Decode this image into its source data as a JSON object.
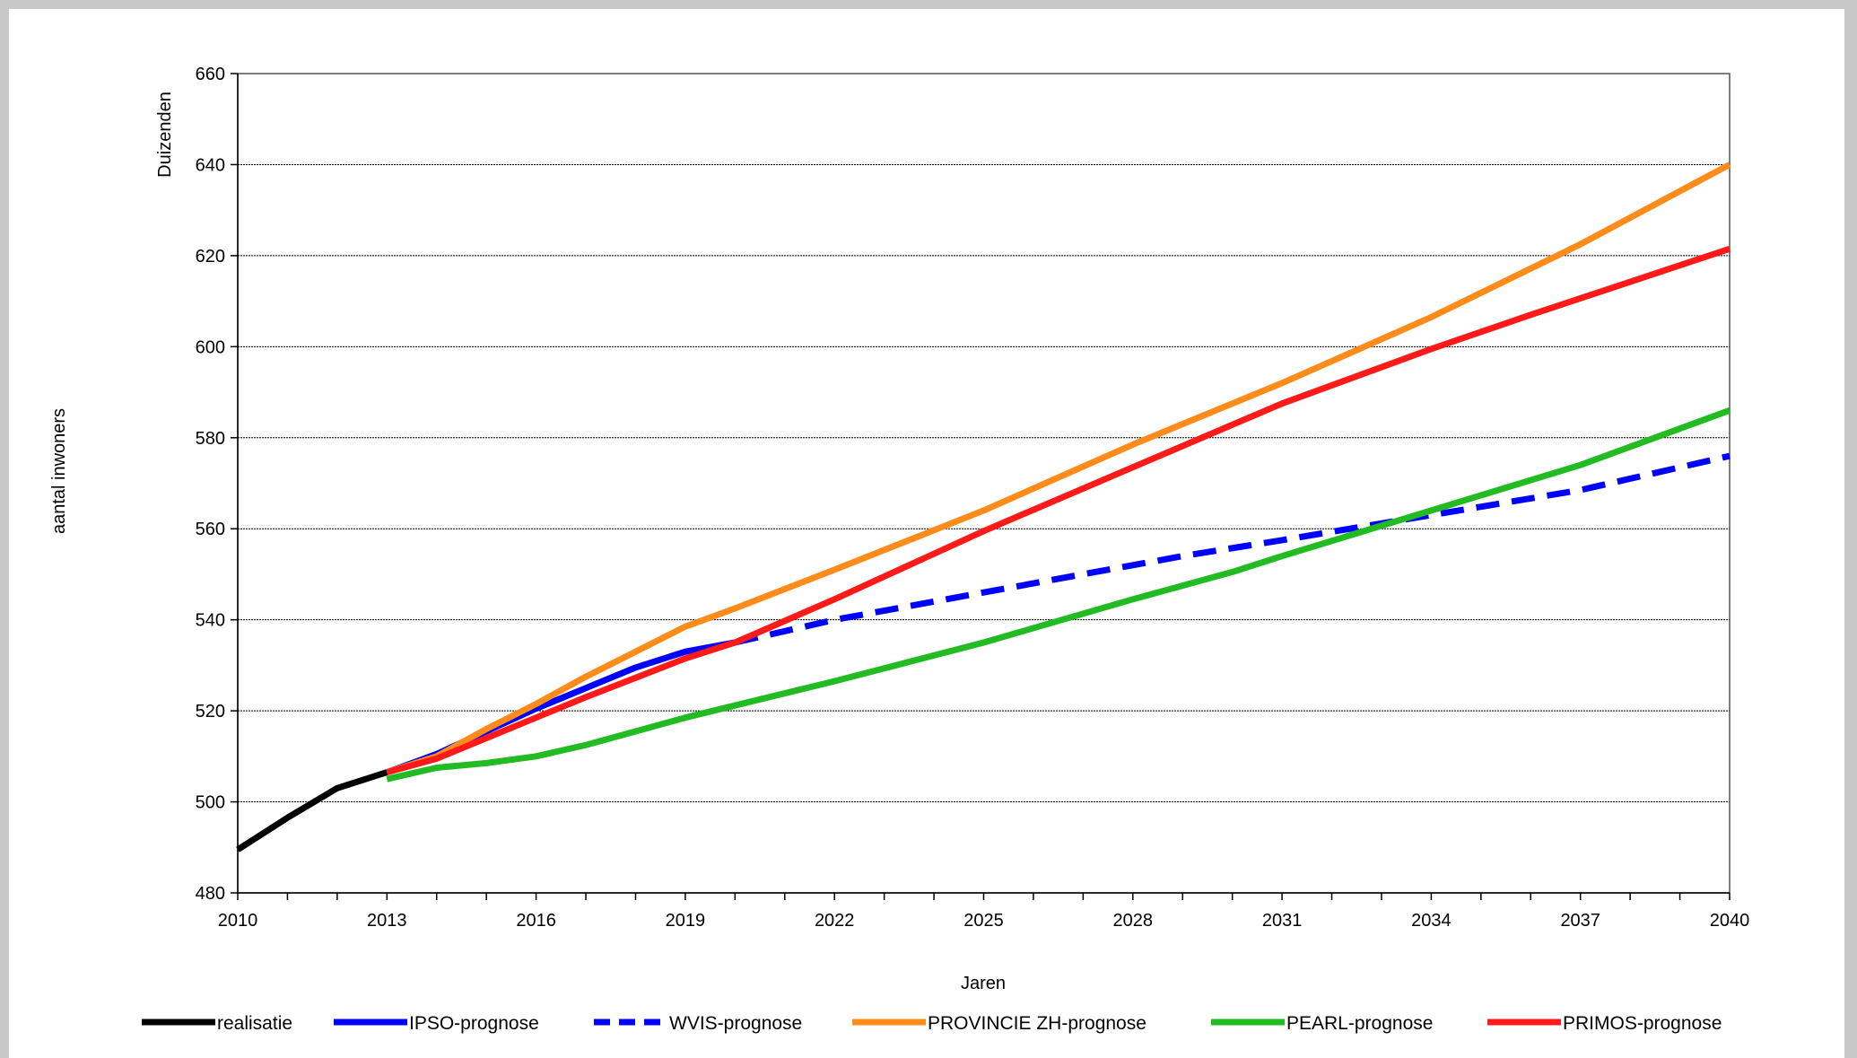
{
  "chart_data": {
    "type": "line",
    "xlabel": "Jaren",
    "ylabel": "aantal inwoners",
    "yunit": "Duizenden",
    "xlim": [
      2010,
      2040
    ],
    "ylim": [
      480,
      660
    ],
    "x_ticks": [
      "2010",
      "2013",
      "2016",
      "2019",
      "2022",
      "2025",
      "2028",
      "2031",
      "2034",
      "2037",
      "2040"
    ],
    "y_ticks": [
      "480",
      "500",
      "520",
      "540",
      "560",
      "580",
      "600",
      "620",
      "640",
      "660"
    ],
    "grid": "horizontal",
    "legend_placement": "bottom",
    "series": [
      {
        "name": "realisatie",
        "color": "#000000",
        "style": "solid",
        "points": [
          [
            2010,
            489.5
          ],
          [
            2011,
            496.5
          ],
          [
            2012,
            503
          ],
          [
            2013,
            506.5
          ]
        ]
      },
      {
        "name": "IPSO-prognose",
        "color": "#0000ff",
        "style": "solid",
        "points": [
          [
            2013,
            506.5
          ],
          [
            2014,
            510.5
          ],
          [
            2015,
            515.5
          ],
          [
            2016,
            520.5
          ],
          [
            2017,
            525
          ],
          [
            2018,
            529.5
          ],
          [
            2019,
            533
          ],
          [
            2020,
            535
          ]
        ]
      },
      {
        "name": "WVIS-prognose",
        "color": "#0000ff",
        "style": "dashed",
        "points": [
          [
            2020,
            535
          ],
          [
            2022,
            540
          ],
          [
            2025,
            546
          ],
          [
            2027,
            550
          ],
          [
            2029,
            554
          ],
          [
            2031,
            557.5
          ],
          [
            2034,
            563
          ],
          [
            2037,
            568.5
          ],
          [
            2040,
            576
          ]
        ]
      },
      {
        "name": "PROVINCIE ZH-prognose",
        "color": "#ff8c1a",
        "style": "solid",
        "points": [
          [
            2013,
            506.5
          ],
          [
            2014,
            510
          ],
          [
            2015,
            516
          ],
          [
            2016,
            521.5
          ],
          [
            2017,
            527.5
          ],
          [
            2018,
            533
          ],
          [
            2019,
            538.5
          ],
          [
            2020,
            542.5
          ],
          [
            2022,
            551
          ],
          [
            2025,
            564
          ],
          [
            2028,
            578.5
          ],
          [
            2031,
            592
          ],
          [
            2034,
            606.5
          ],
          [
            2037,
            622.5
          ],
          [
            2040,
            640
          ]
        ]
      },
      {
        "name": "PEARL-prognose",
        "color": "#22bb22",
        "style": "solid",
        "points": [
          [
            2013,
            505
          ],
          [
            2014,
            507.5
          ],
          [
            2015,
            508.5
          ],
          [
            2016,
            510
          ],
          [
            2017,
            512.5
          ],
          [
            2019,
            518.5
          ],
          [
            2022,
            526.5
          ],
          [
            2025,
            535
          ],
          [
            2028,
            544.5
          ],
          [
            2030,
            550.5
          ],
          [
            2031,
            554
          ],
          [
            2034,
            564
          ],
          [
            2037,
            574
          ],
          [
            2040,
            586
          ]
        ]
      },
      {
        "name": "PRIMOS-prognose",
        "color": "#ff1a1a",
        "style": "solid",
        "points": [
          [
            2013,
            506.5
          ],
          [
            2014,
            509.5
          ],
          [
            2015,
            514
          ],
          [
            2016,
            518.5
          ],
          [
            2017,
            523
          ],
          [
            2019,
            531.5
          ],
          [
            2020,
            535
          ],
          [
            2022,
            544.5
          ],
          [
            2025,
            559.5
          ],
          [
            2028,
            573.5
          ],
          [
            2031,
            587.5
          ],
          [
            2034,
            599.5
          ],
          [
            2036,
            607
          ],
          [
            2040,
            621.5
          ]
        ]
      }
    ]
  }
}
